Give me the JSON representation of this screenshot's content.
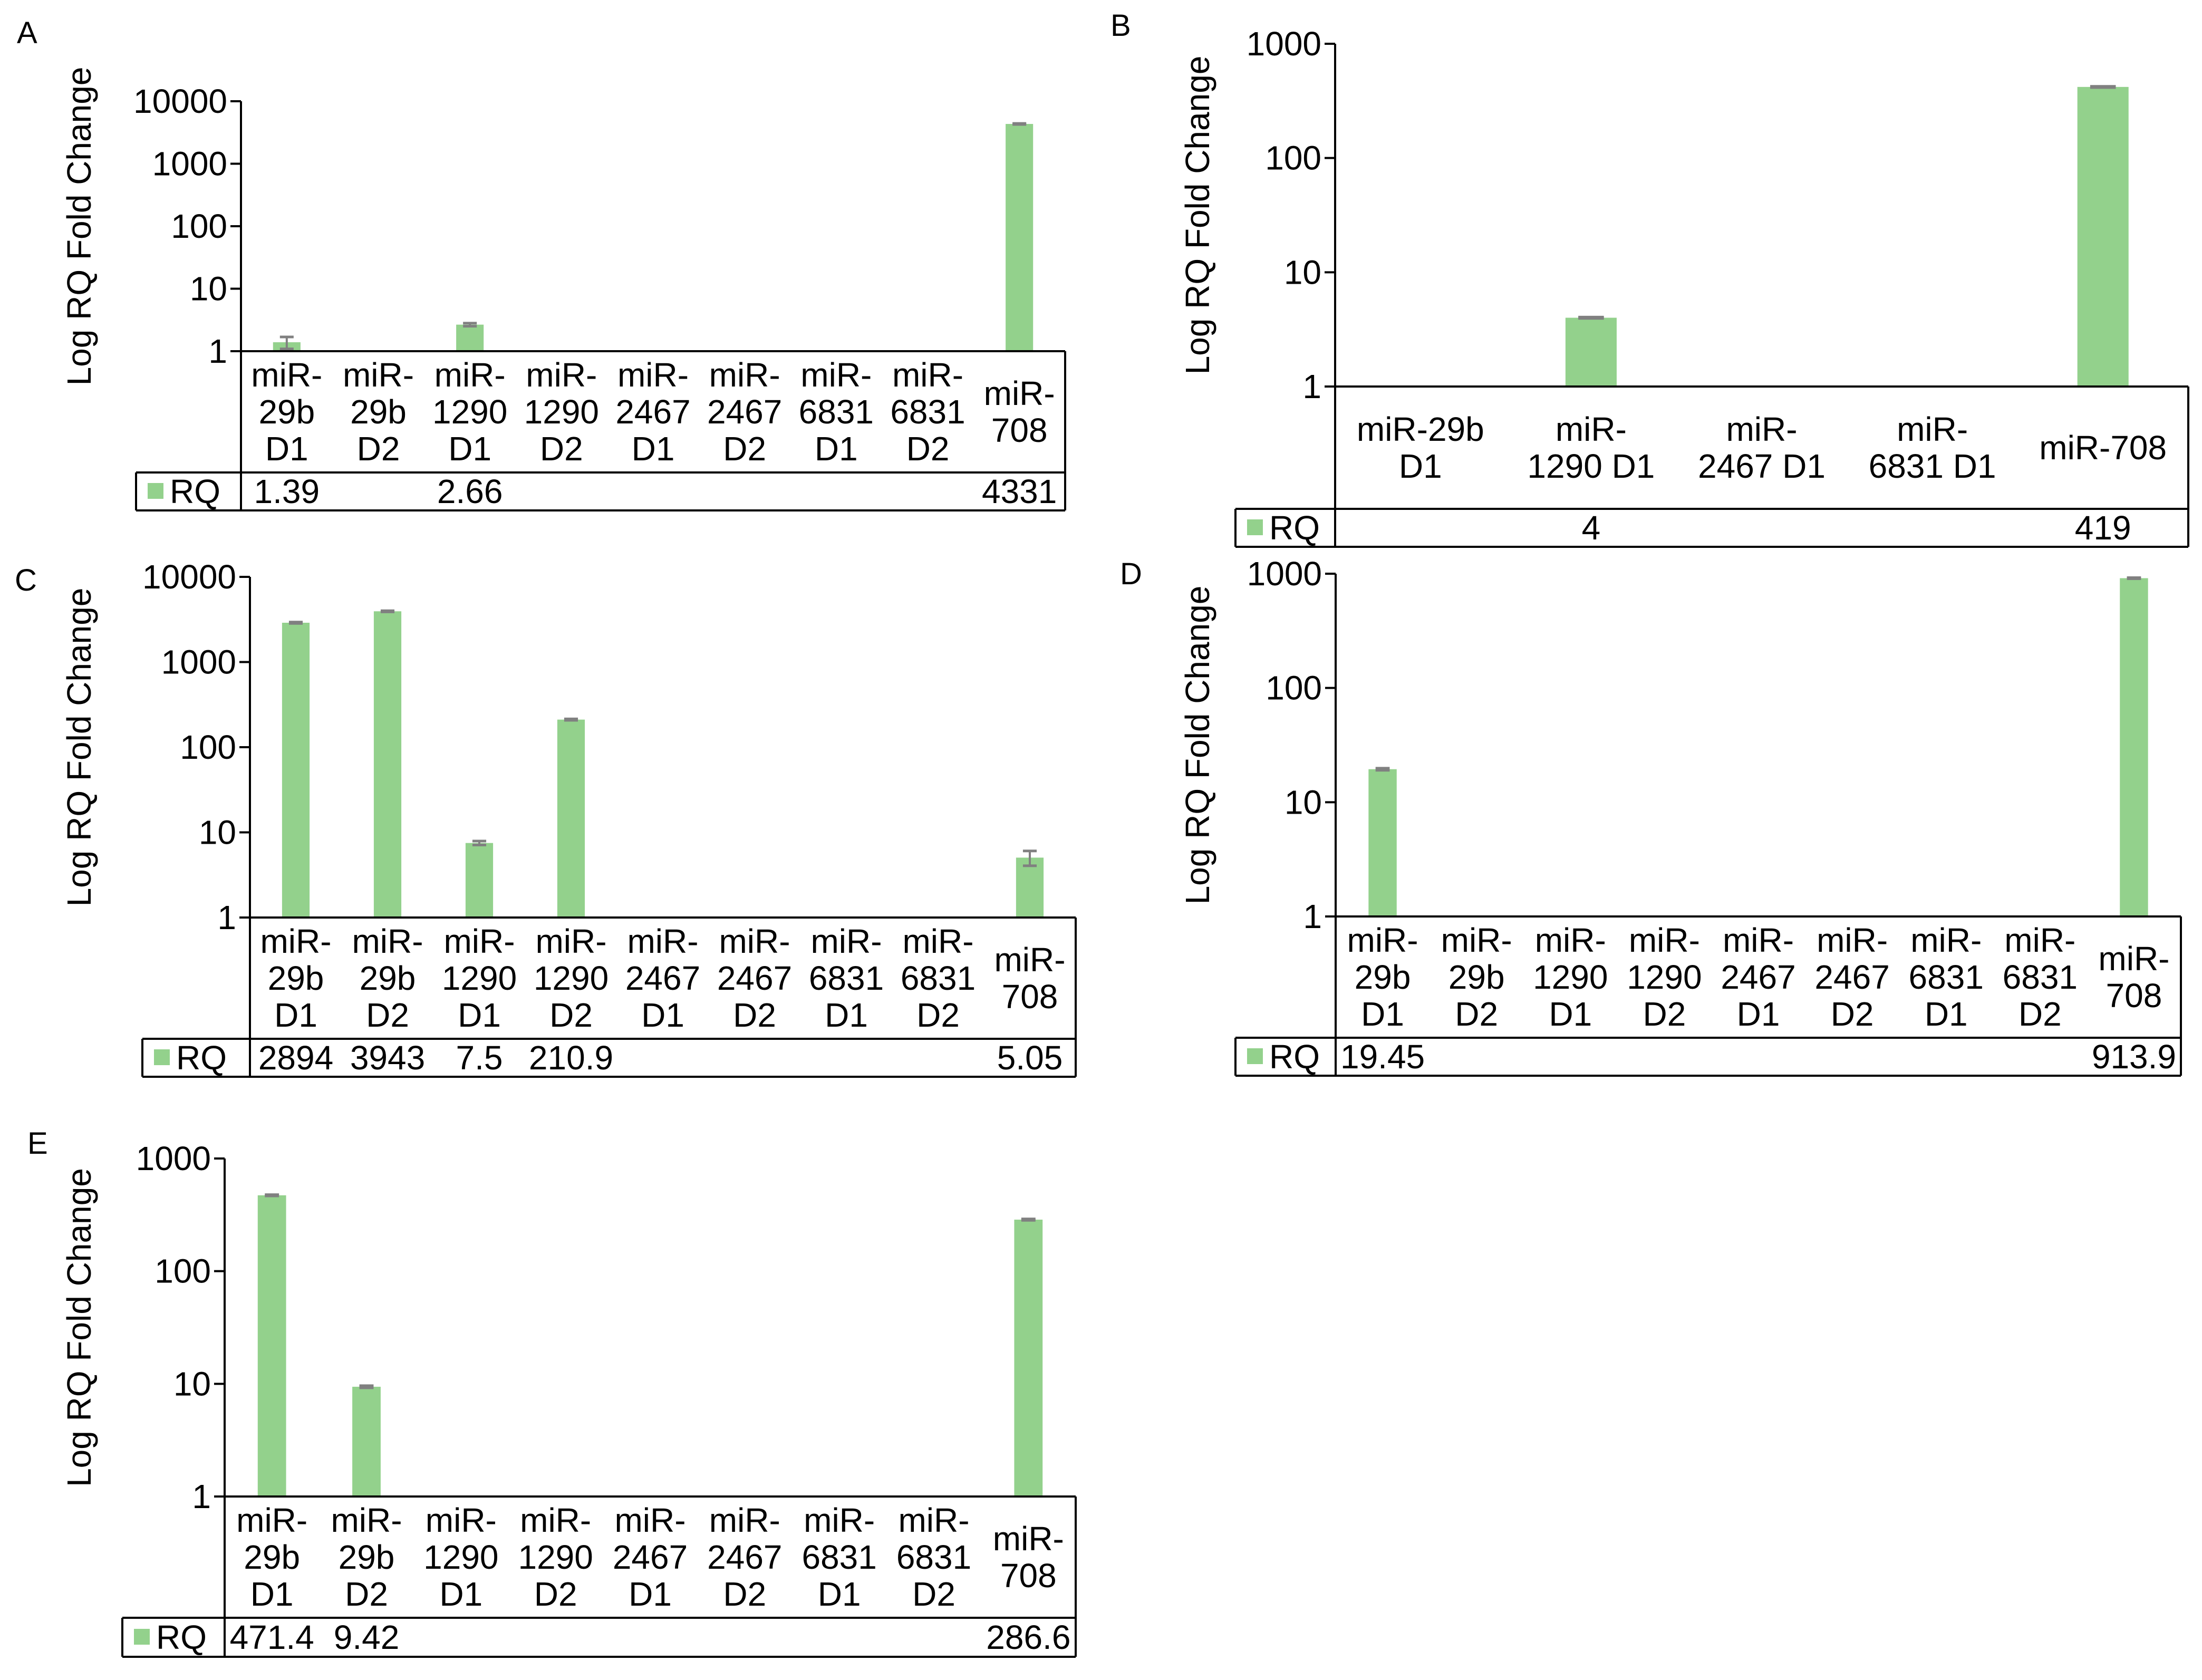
{
  "colors": {
    "bar": "#93d18c",
    "error": "#808080",
    "axis": "#000000",
    "text": "#000000"
  },
  "y_label": "Log RQ Fold Change",
  "series_name": "RQ",
  "chart_data": [
    {
      "panel": "A",
      "type": "bar",
      "scale": "log",
      "ylim": [
        1,
        10000
      ],
      "yticks": [
        "1",
        "10",
        "100",
        "1000",
        "10000"
      ],
      "ylabel": "Log RQ Fold Change",
      "categories": [
        [
          "miR-",
          "29b",
          "D1"
        ],
        [
          "miR-",
          "29b",
          "D2"
        ],
        [
          "miR-",
          "1290",
          "D1"
        ],
        [
          "miR-",
          "1290",
          "D2"
        ],
        [
          "miR-",
          "2467",
          "D1"
        ],
        [
          "miR-",
          "2467",
          "D2"
        ],
        [
          "miR-",
          "6831",
          "D1"
        ],
        [
          "miR-",
          "6831",
          "D2"
        ],
        [
          "miR-",
          "708"
        ]
      ],
      "values": [
        1.39,
        null,
        2.66,
        null,
        null,
        null,
        null,
        null,
        4331
      ],
      "errors": [
        0.3,
        null,
        0.15,
        null,
        null,
        null,
        null,
        null,
        80
      ],
      "labels": [
        "1.39",
        "",
        "2.66",
        "",
        "",
        "",
        "",
        "",
        "4331"
      ],
      "legend": "RQ"
    },
    {
      "panel": "B",
      "type": "bar",
      "scale": "log",
      "ylim": [
        1,
        1000
      ],
      "yticks": [
        "1",
        "10",
        "100",
        "1000"
      ],
      "ylabel": "Log RQ Fold Change",
      "categories": [
        [
          "miR-29b",
          "D1"
        ],
        [
          "miR-",
          "1290 D1"
        ],
        [
          "miR-",
          "2467 D1"
        ],
        [
          "miR-",
          "6831 D1"
        ],
        [
          "miR-708"
        ]
      ],
      "values": [
        null,
        4,
        null,
        null,
        419
      ],
      "errors": [
        null,
        0.05,
        null,
        null,
        5
      ],
      "labels": [
        "",
        "4",
        "",
        "",
        "419"
      ],
      "legend": "RQ"
    },
    {
      "panel": "C",
      "type": "bar",
      "scale": "log",
      "ylim": [
        1,
        10000
      ],
      "yticks": [
        "1",
        "10",
        "100",
        "1000",
        "10000"
      ],
      "ylabel": "Log RQ Fold Change",
      "categories": [
        [
          "miR-",
          "29b",
          "D1"
        ],
        [
          "miR-",
          "29b",
          "D2"
        ],
        [
          "miR-",
          "1290",
          "D1"
        ],
        [
          "miR-",
          "1290",
          "D2"
        ],
        [
          "miR-",
          "2467",
          "D1"
        ],
        [
          "miR-",
          "2467",
          "D2"
        ],
        [
          "miR-",
          "6831",
          "D1"
        ],
        [
          "miR-",
          "6831",
          "D2"
        ],
        [
          "miR-",
          "708"
        ]
      ],
      "values": [
        2894,
        3943,
        7.5,
        210.9,
        null,
        null,
        null,
        null,
        5.05
      ],
      "errors": [
        50,
        60,
        0.4,
        4,
        null,
        null,
        null,
        null,
        1.0
      ],
      "labels": [
        "2894",
        "3943",
        "7.5",
        "210.9",
        "",
        "",
        "",
        "",
        "5.05"
      ],
      "legend": "RQ"
    },
    {
      "panel": "D",
      "type": "bar",
      "scale": "log",
      "ylim": [
        1,
        1000
      ],
      "yticks": [
        "1",
        "10",
        "100",
        "1000"
      ],
      "ylabel": "Log RQ Fold Change",
      "categories": [
        [
          "miR-",
          "29b",
          "D1"
        ],
        [
          "miR-",
          "29b",
          "D2"
        ],
        [
          "miR-",
          "1290",
          "D1"
        ],
        [
          "miR-",
          "1290",
          "D2"
        ],
        [
          "miR-",
          "2467",
          "D1"
        ],
        [
          "miR-",
          "2467",
          "D2"
        ],
        [
          "miR-",
          "6831",
          "D1"
        ],
        [
          "miR-",
          "6831",
          "D2"
        ],
        [
          "miR-",
          "708"
        ]
      ],
      "values": [
        19.45,
        null,
        null,
        null,
        null,
        null,
        null,
        null,
        913.9
      ],
      "errors": [
        0.4,
        null,
        null,
        null,
        null,
        null,
        null,
        null,
        10
      ],
      "labels": [
        "19.45",
        "",
        "",
        "",
        "",
        "",
        "",
        "",
        "913.9"
      ],
      "legend": "RQ"
    },
    {
      "panel": "E",
      "type": "bar",
      "scale": "log",
      "ylim": [
        1,
        1000
      ],
      "yticks": [
        "1",
        "10",
        "100",
        "1000"
      ],
      "ylabel": "Log RQ Fold Change",
      "categories": [
        [
          "miR-",
          "29b",
          "D1"
        ],
        [
          "miR-",
          "29b",
          "D2"
        ],
        [
          "miR-",
          "1290",
          "D1"
        ],
        [
          "miR-",
          "1290",
          "D2"
        ],
        [
          "miR-",
          "2467",
          "D1"
        ],
        [
          "miR-",
          "2467",
          "D2"
        ],
        [
          "miR-",
          "6831",
          "D1"
        ],
        [
          "miR-",
          "6831",
          "D2"
        ],
        [
          "miR-",
          "708"
        ]
      ],
      "values": [
        471.4,
        9.42,
        null,
        null,
        null,
        null,
        null,
        null,
        286.6
      ],
      "errors": [
        6,
        0.2,
        null,
        null,
        null,
        null,
        null,
        null,
        4
      ],
      "labels": [
        "471.4",
        "9.42",
        "",
        "",
        "",
        "",
        "",
        "",
        "286.6"
      ],
      "legend": "RQ"
    }
  ]
}
